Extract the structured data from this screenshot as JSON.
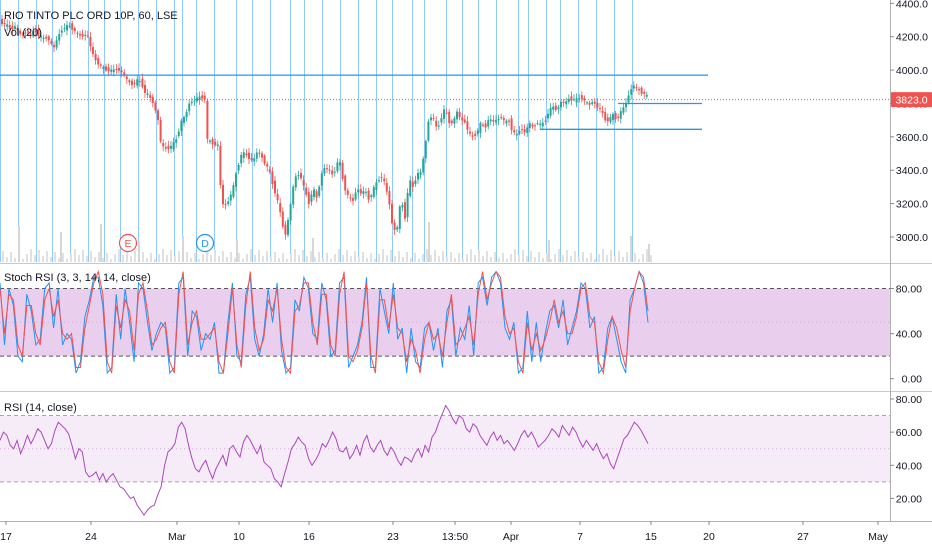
{
  "chart_data": [
    {
      "type": "candlestick",
      "title": "RIO TINTO PLC ORD 10P, 60, LSE",
      "volume_label": "Vol (20)",
      "ylim": [
        2850,
        4420
      ],
      "yticks": [
        3000,
        3200,
        3400,
        3600,
        3800,
        4000,
        4200,
        4400
      ],
      "ytick_labels": [
        "3000.0",
        "3200.0",
        "3400.0",
        "3600.0",
        "3800.0",
        "4000.0",
        "4200.0",
        "4400.0"
      ],
      "last_price": 3823.0,
      "last_price_label": "3823.0",
      "xlabels": [
        "17",
        "24",
        "Mar",
        "10",
        "16",
        "23",
        "13:50",
        "Apr",
        "7",
        "15",
        "20",
        "27",
        "May"
      ],
      "path": [
        [
          0,
          4290
        ],
        [
          4,
          4275
        ],
        [
          10,
          4245
        ],
        [
          14,
          4260
        ],
        [
          18,
          4220
        ],
        [
          22,
          4215
        ],
        [
          26,
          4235
        ],
        [
          30,
          4210
        ],
        [
          34,
          4240
        ],
        [
          38,
          4205
        ],
        [
          42,
          4185
        ],
        [
          46,
          4200
        ],
        [
          50,
          4160
        ],
        [
          52,
          4120
        ],
        [
          56,
          4185
        ],
        [
          60,
          4240
        ],
        [
          64,
          4255
        ],
        [
          68,
          4265
        ],
        [
          72,
          4250
        ],
        [
          76,
          4215
        ],
        [
          80,
          4205
        ],
        [
          84,
          4210
        ],
        [
          88,
          4195
        ],
        [
          90,
          4120
        ],
        [
          94,
          4065
        ],
        [
          100,
          4020
        ],
        [
          104,
          4005
        ],
        [
          108,
          4000
        ],
        [
          112,
          3995
        ],
        [
          116,
          4010
        ],
        [
          120,
          3990
        ],
        [
          124,
          3960
        ],
        [
          128,
          3925
        ],
        [
          132,
          3915
        ],
        [
          136,
          3935
        ],
        [
          140,
          3930
        ],
        [
          144,
          3865
        ],
        [
          148,
          3845
        ],
        [
          152,
          3805
        ],
        [
          156,
          3725
        ],
        [
          158,
          3680
        ],
        [
          160,
          3545
        ],
        [
          164,
          3530
        ],
        [
          168,
          3535
        ],
        [
          172,
          3550
        ],
        [
          176,
          3600
        ],
        [
          180,
          3690
        ],
        [
          184,
          3720
        ],
        [
          188,
          3800
        ],
        [
          192,
          3815
        ],
        [
          196,
          3830
        ],
        [
          200,
          3840
        ],
        [
          204,
          3830
        ],
        [
          206,
          3580
        ],
        [
          210,
          3570
        ],
        [
          214,
          3555
        ],
        [
          218,
          3545
        ],
        [
          220,
          3210
        ],
        [
          224,
          3185
        ],
        [
          228,
          3225
        ],
        [
          232,
          3290
        ],
        [
          236,
          3410
        ],
        [
          240,
          3490
        ],
        [
          244,
          3500
        ],
        [
          248,
          3475
        ],
        [
          252,
          3450
        ],
        [
          256,
          3510
        ],
        [
          260,
          3490
        ],
        [
          264,
          3440
        ],
        [
          268,
          3400
        ],
        [
          272,
          3310
        ],
        [
          276,
          3230
        ],
        [
          280,
          3120
        ],
        [
          284,
          3005
        ],
        [
          288,
          3130
        ],
        [
          292,
          3295
        ],
        [
          296,
          3390
        ],
        [
          300,
          3355
        ],
        [
          304,
          3270
        ],
        [
          308,
          3205
        ],
        [
          312,
          3290
        ],
        [
          316,
          3230
        ],
        [
          320,
          3370
        ],
        [
          324,
          3420
        ],
        [
          328,
          3400
        ],
        [
          332,
          3370
        ],
        [
          336,
          3435
        ],
        [
          338,
          3480
        ],
        [
          340,
          3395
        ],
        [
          344,
          3290
        ],
        [
          348,
          3230
        ],
        [
          352,
          3220
        ],
        [
          356,
          3295
        ],
        [
          360,
          3260
        ],
        [
          364,
          3280
        ],
        [
          368,
          3225
        ],
        [
          372,
          3280
        ],
        [
          376,
          3330
        ],
        [
          380,
          3370
        ],
        [
          384,
          3315
        ],
        [
          388,
          3215
        ],
        [
          392,
          3040
        ],
        [
          396,
          3050
        ],
        [
          400,
          3230
        ],
        [
          404,
          3120
        ],
        [
          408,
          3340
        ],
        [
          412,
          3300
        ],
        [
          416,
          3380
        ],
        [
          420,
          3385
        ],
        [
          424,
          3540
        ],
        [
          428,
          3720
        ],
        [
          432,
          3720
        ],
        [
          436,
          3640
        ],
        [
          440,
          3715
        ],
        [
          444,
          3770
        ],
        [
          448,
          3690
        ],
        [
          452,
          3685
        ],
        [
          456,
          3750
        ],
        [
          460,
          3700
        ],
        [
          464,
          3690
        ],
        [
          468,
          3615
        ],
        [
          472,
          3600
        ],
        [
          476,
          3630
        ],
        [
          480,
          3680
        ],
        [
          484,
          3655
        ],
        [
          488,
          3710
        ],
        [
          492,
          3690
        ],
        [
          496,
          3700
        ],
        [
          500,
          3720
        ],
        [
          504,
          3685
        ],
        [
          508,
          3695
        ],
        [
          512,
          3625
        ],
        [
          516,
          3610
        ],
        [
          520,
          3660
        ],
        [
          524,
          3620
        ],
        [
          528,
          3685
        ],
        [
          532,
          3655
        ],
        [
          536,
          3690
        ],
        [
          540,
          3665
        ],
        [
          544,
          3700
        ],
        [
          548,
          3755
        ],
        [
          552,
          3780
        ],
        [
          556,
          3760
        ],
        [
          560,
          3810
        ],
        [
          564,
          3800
        ],
        [
          568,
          3830
        ],
        [
          572,
          3825
        ],
        [
          576,
          3820
        ],
        [
          580,
          3845
        ],
        [
          584,
          3810
        ],
        [
          588,
          3790
        ],
        [
          592,
          3815
        ],
        [
          596,
          3780
        ],
        [
          600,
          3760
        ],
        [
          604,
          3705
        ],
        [
          608,
          3700
        ],
        [
          612,
          3730
        ],
        [
          616,
          3705
        ],
        [
          620,
          3750
        ],
        [
          624,
          3790
        ],
        [
          628,
          3855
        ],
        [
          632,
          3915
        ],
        [
          636,
          3885
        ],
        [
          640,
          3870
        ],
        [
          644,
          3855
        ],
        [
          648,
          3823
        ]
      ],
      "volume_spikes": [
        [
          18,
          36
        ],
        [
          60,
          30
        ],
        [
          100,
          38
        ],
        [
          138,
          20
        ],
        [
          182,
          26
        ],
        [
          236,
          22
        ],
        [
          312,
          24
        ],
        [
          428,
          40
        ],
        [
          548,
          22
        ],
        [
          630,
          26
        ],
        [
          648,
          18
        ]
      ],
      "lines": [
        {
          "name": "resistance",
          "color": "#2196f3",
          "y": 3970,
          "x0": 0,
          "x1": 708
        },
        {
          "name": "level-1",
          "color": "#2196f3",
          "y": 3800,
          "x0": 618,
          "x1": 702
        },
        {
          "name": "level-2",
          "color": "#2196f3",
          "y": 3645,
          "x0": 540,
          "x1": 702
        }
      ],
      "price_line_color": "#ef5350",
      "up_color": "#26a69a",
      "down_color": "#ef5350",
      "vlines_x": [
        0,
        18,
        36,
        52,
        70,
        88,
        104,
        120,
        138,
        156,
        174,
        182,
        196,
        214,
        236,
        252,
        270,
        290,
        304,
        322,
        340,
        358,
        376,
        392,
        412,
        424,
        446,
        462,
        478,
        496,
        518,
        528,
        546,
        560,
        578,
        596,
        614,
        632
      ],
      "vline_color": "#90caf9",
      "events": [
        {
          "label": "E",
          "x": 128,
          "color": "#ef5350"
        },
        {
          "label": "D",
          "x": 205,
          "color": "#2196f3"
        }
      ]
    },
    {
      "type": "line",
      "title": "Stoch RSI (3, 3, 14, 14, close)",
      "ylim": [
        -10,
        100
      ],
      "yticks": [
        0,
        40,
        80
      ],
      "ytick_labels": [
        "0.00",
        "40.00",
        "80.00"
      ],
      "band": [
        20,
        80
      ],
      "band_color": "#e1bee7",
      "series": [
        {
          "color": "#2196f3",
          "values": [
            85,
            30,
            80,
            65,
            20,
            15,
            75,
            60,
            30,
            35,
            80,
            85,
            45,
            80,
            30,
            40,
            35,
            5,
            15,
            55,
            70,
            90,
            90,
            65,
            5,
            10,
            75,
            35,
            80,
            50,
            15,
            85,
            80,
            50,
            25,
            40,
            50,
            45,
            5,
            10,
            85,
            90,
            20,
            60,
            55,
            25,
            40,
            35,
            50,
            5,
            5,
            50,
            85,
            20,
            15,
            75,
            90,
            35,
            20,
            40,
            80,
            50,
            85,
            25,
            5,
            10,
            70,
            60,
            90,
            80,
            40,
            35,
            85,
            70,
            20,
            25,
            85,
            90,
            10,
            20,
            30,
            50,
            90,
            10,
            10,
            80,
            60,
            40,
            85,
            35,
            45,
            5,
            45,
            15,
            10,
            45,
            50,
            25,
            45,
            10,
            60,
            70,
            20,
            45,
            35,
            65,
            20,
            85,
            90,
            65,
            90,
            95,
            85,
            45,
            35,
            50,
            5,
            10,
            60,
            15,
            50,
            15,
            40,
            60,
            65,
            45,
            70,
            30,
            45,
            60,
            85,
            80,
            45,
            55,
            5,
            10,
            45,
            55,
            35,
            15,
            5,
            70,
            80,
            95,
            85,
            50
          ]
        },
        {
          "color": "#ef5350",
          "values": [
            80,
            40,
            75,
            70,
            30,
            20,
            65,
            65,
            40,
            30,
            70,
            80,
            55,
            70,
            40,
            35,
            40,
            10,
            10,
            45,
            65,
            85,
            95,
            75,
            15,
            5,
            65,
            45,
            70,
            60,
            25,
            75,
            85,
            60,
            30,
            35,
            45,
            50,
            15,
            5,
            75,
            95,
            30,
            50,
            60,
            35,
            35,
            40,
            45,
            15,
            5,
            40,
            80,
            30,
            10,
            65,
            95,
            45,
            25,
            35,
            70,
            60,
            80,
            35,
            10,
            5,
            60,
            65,
            85,
            85,
            50,
            30,
            75,
            75,
            30,
            20,
            75,
            95,
            20,
            15,
            25,
            45,
            85,
            20,
            5,
            70,
            70,
            45,
            75,
            45,
            40,
            15,
            35,
            25,
            5,
            35,
            50,
            35,
            40,
            20,
            50,
            75,
            30,
            35,
            45,
            55,
            30,
            75,
            95,
            70,
            85,
            95,
            90,
            55,
            40,
            45,
            15,
            5,
            50,
            25,
            40,
            25,
            35,
            50,
            70,
            50,
            60,
            40,
            40,
            55,
            80,
            85,
            55,
            50,
            15,
            5,
            35,
            55,
            45,
            25,
            10,
            60,
            80,
            95,
            90,
            60
          ]
        }
      ]
    },
    {
      "type": "line",
      "title": "RSI (14, close)",
      "ylim": [
        7,
        83
      ],
      "yticks": [
        20,
        40,
        60,
        80
      ],
      "ytick_labels": [
        "20.00",
        "40.00",
        "60.00",
        "80.00"
      ],
      "band": [
        30,
        70
      ],
      "band_color": "#f3e5f5",
      "series": [
        {
          "color": "#ab47bc",
          "values": [
            55,
            60,
            58,
            52,
            50,
            55,
            47,
            52,
            58,
            53,
            57,
            62,
            60,
            55,
            50,
            53,
            61,
            66,
            64,
            62,
            59,
            52,
            44,
            50,
            48,
            36,
            33,
            34,
            36,
            31,
            35,
            30,
            33,
            35,
            31,
            27,
            26,
            23,
            20,
            21,
            16,
            13,
            10,
            13,
            15,
            16,
            22,
            27,
            40,
            48,
            50,
            53,
            63,
            66,
            62,
            52,
            44,
            38,
            36,
            40,
            43,
            37,
            32,
            38,
            42,
            46,
            40,
            50,
            52,
            48,
            45,
            54,
            58,
            55,
            51,
            47,
            52,
            42,
            40,
            38,
            32,
            30,
            27,
            35,
            42,
            50,
            53,
            57,
            54,
            52,
            44,
            40,
            43,
            47,
            53,
            51,
            55,
            60,
            56,
            49,
            48,
            51,
            44,
            47,
            52,
            46,
            54,
            58,
            51,
            48,
            52,
            55,
            49,
            46,
            51,
            48,
            43,
            40,
            45,
            44,
            42,
            47,
            50,
            45,
            52,
            48,
            57,
            60,
            66,
            71,
            76,
            73,
            68,
            65,
            70,
            68,
            62,
            60,
            65,
            63,
            58,
            55,
            52,
            57,
            60,
            55,
            58,
            53,
            55,
            52,
            49,
            53,
            58,
            61,
            57,
            60,
            56,
            51,
            53,
            55,
            58,
            62,
            60,
            57,
            64,
            61,
            58,
            63,
            60,
            55,
            51,
            55,
            52,
            49,
            53,
            48,
            44,
            47,
            41,
            38,
            44,
            50,
            56,
            58,
            62,
            66,
            64,
            61,
            57,
            53
          ]
        }
      ]
    }
  ]
}
